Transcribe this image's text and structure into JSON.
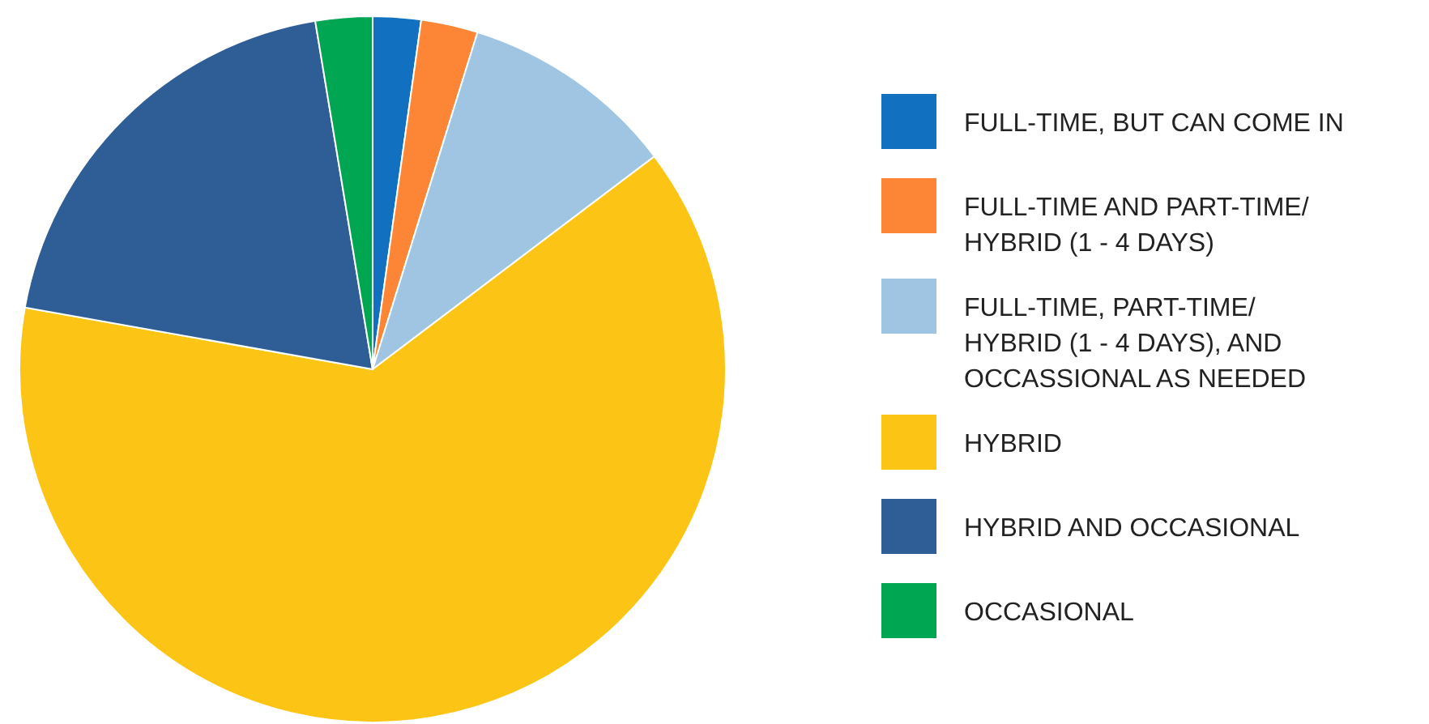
{
  "chart_data": {
    "type": "pie",
    "categories": [
      "FULL-TIME, BUT CAN COME IN",
      "FULL-TIME AND PART-TIME/ HYBRID (1 - 4 DAYS)",
      "FULL-TIME, PART-TIME/ HYBRID (1 - 4 DAYS), AND OCCASSIONAL AS NEEDED",
      "HYBRID",
      "HYBRID AND OCCASIONAL",
      "OCCASIONAL"
    ],
    "values": [
      2.2,
      2.6,
      9.9,
      63.1,
      19.6,
      2.6
    ],
    "colors": [
      "#1170c0",
      "#fd8636",
      "#9fc5e3",
      "#fcc515",
      "#2e5e95",
      "#00a651"
    ],
    "legend": "right"
  }
}
